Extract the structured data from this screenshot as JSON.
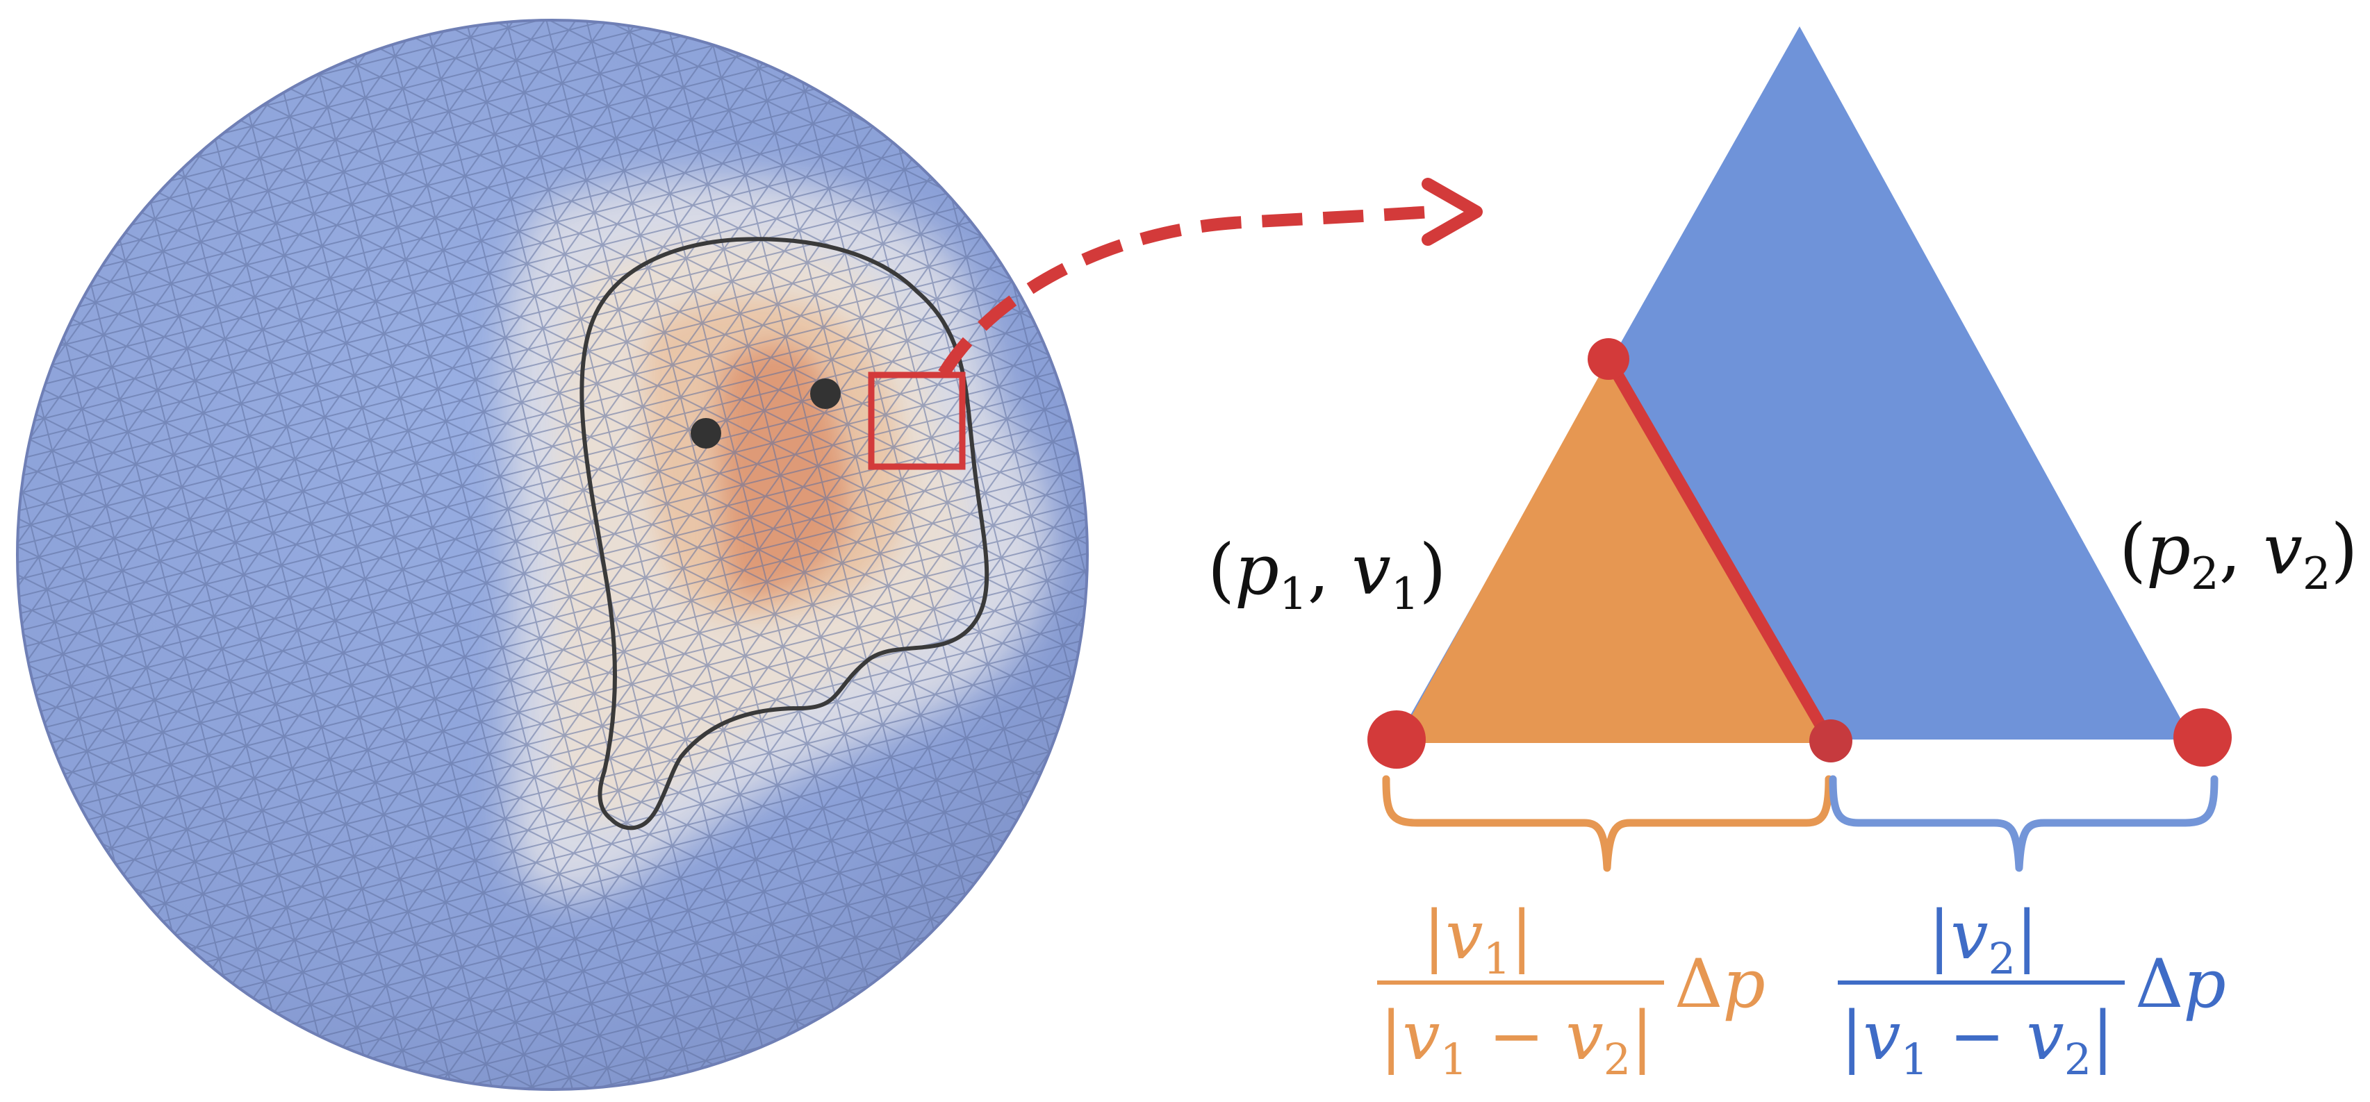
{
  "colors": {
    "sphere_blue": "#8a9fd6",
    "sphere_edge": "#6f7fb5",
    "mesh_line": "#6a78a8",
    "halo_outer": "#d7d9e4",
    "halo_inner": "#e8ddd3",
    "warm_mid": "#e9c4a6",
    "warm_core": "#de9a76",
    "accent_red": "#d33a3a",
    "tri_blue": "#6f93d9",
    "tri_orange": "#e69752",
    "label_black": "#111111",
    "brace_orange": "#e69752",
    "brace_blue": "#7395d8",
    "formula_orange": "#e69752",
    "formula_blue": "#3f6cc6",
    "points": "#333333"
  },
  "labels": {
    "left_point": {
      "open": "(",
      "var1": "p",
      "sub1": "1",
      "comma": ", ",
      "var2": "v",
      "sub2": "1",
      "close": ")"
    },
    "right_point": {
      "open": "(",
      "var1": "p",
      "sub1": "2",
      "comma": ", ",
      "var2": "v",
      "sub2": "2",
      "close": ")"
    }
  },
  "formulas": {
    "left": {
      "num_bar": "|",
      "num_var": "v",
      "num_sub": "1",
      "den_var1": "v",
      "den_sub1": "1",
      "den_minus": " − ",
      "den_var2": "v",
      "den_sub2": "2",
      "delta": "Δ",
      "delta_var": "p"
    },
    "right": {
      "num_bar": "|",
      "num_var": "v",
      "num_sub": "2",
      "den_var1": "v",
      "den_sub1": "1",
      "den_minus": " − ",
      "den_var2": "v",
      "den_sub2": "2",
      "delta": "Δ",
      "delta_var": "p"
    }
  }
}
